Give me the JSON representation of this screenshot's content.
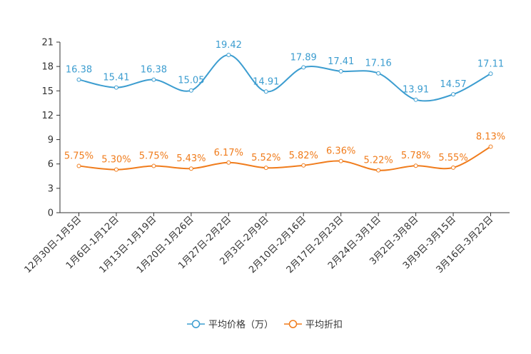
{
  "chart_data": {
    "type": "line",
    "title": "",
    "xlabel": "",
    "ylabel": "",
    "ylim": [
      0,
      21
    ],
    "yticks": [
      0,
      3,
      6,
      9,
      12,
      15,
      18,
      21
    ],
    "grid": false,
    "legend_position": "bottom",
    "categories": [
      "12月30日-1月5日",
      "1月6日-1月12日",
      "1月13日-1月19日",
      "1月20日-1月26日",
      "1月27日-2月2日",
      "2月3日-2月9日",
      "2月10日-2月16日",
      "2月17日-2月23日",
      "2月24日-3月1日",
      "3月2日-3月8日",
      "3月9日-3月15日",
      "3月16日-3月22日"
    ],
    "series": [
      {
        "name": "平均价格（万）",
        "color": "#3c9dd0",
        "values": [
          16.38,
          15.41,
          16.38,
          15.05,
          19.42,
          14.91,
          17.89,
          17.41,
          17.16,
          13.91,
          14.57,
          17.11
        ],
        "labels": [
          "16.38",
          "15.41",
          "16.38",
          "15.05",
          "19.42",
          "14.91",
          "17.89",
          "17.41",
          "17.16",
          "13.91",
          "14.57",
          "17.11"
        ]
      },
      {
        "name": "平均折扣",
        "color": "#f07c1c",
        "values": [
          5.75,
          5.3,
          5.75,
          5.43,
          6.17,
          5.52,
          5.82,
          6.36,
          5.22,
          5.78,
          5.55,
          8.13
        ],
        "labels": [
          "5.75%",
          "5.30%",
          "5.75%",
          "5.43%",
          "6.17%",
          "5.52%",
          "5.82%",
          "6.36%",
          "5.22%",
          "5.78%",
          "5.55%",
          "8.13%"
        ]
      }
    ]
  }
}
